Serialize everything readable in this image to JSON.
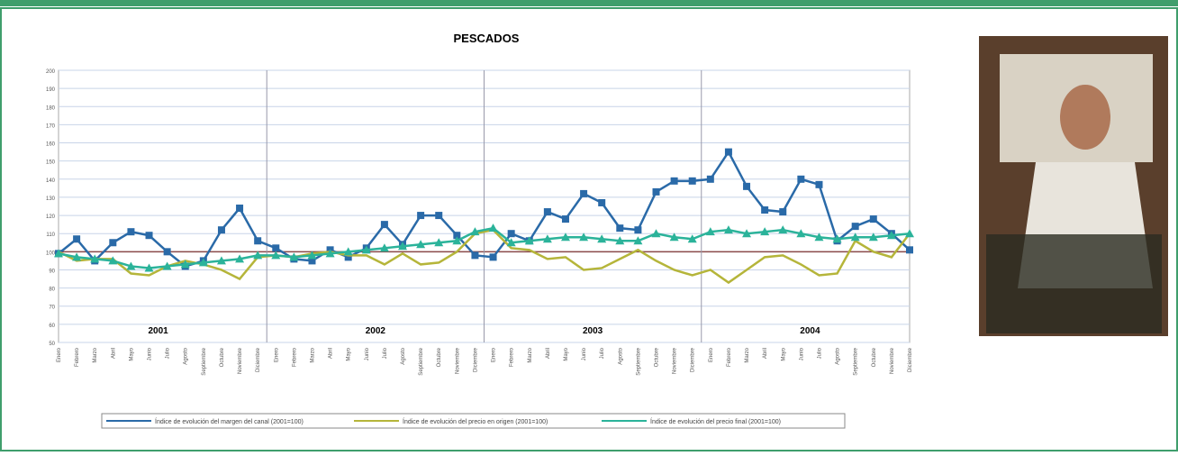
{
  "chart_data": {
    "type": "line",
    "title": "PESCADOS",
    "categories": [
      "Enero",
      "Febrero",
      "Marzo",
      "Abril",
      "Mayo",
      "Junio",
      "Julio",
      "Agosto",
      "Septiembre",
      "Octubre",
      "Noviembre",
      "Diciembre",
      "Enero",
      "Febrero",
      "Marzo",
      "Abril",
      "Mayo",
      "Junio",
      "Julio",
      "Agosto",
      "Septiembre",
      "Octubre",
      "Noviembre",
      "Diciembre",
      "Enero",
      "Febrero",
      "Marzo",
      "Abril",
      "Mayo",
      "Junio",
      "Julio",
      "Agosto",
      "Septiembre",
      "Octubre",
      "Noviembre",
      "Diciembre",
      "Enero",
      "Febrero",
      "Marzo",
      "Abril",
      "Mayo",
      "Junio",
      "Julio",
      "Agosto",
      "Septiembre",
      "Octubre",
      "Noviembre",
      "Diciembre"
    ],
    "years": [
      "2001",
      "2002",
      "2003",
      "2004"
    ],
    "series": [
      {
        "name": "Índice de evolución del margen del canal (2001=100)",
        "color": "#2a6aa8",
        "marker": "square",
        "values": [
          99,
          107,
          95,
          105,
          111,
          109,
          100,
          92,
          95,
          112,
          124,
          106,
          102,
          96,
          95,
          101,
          97,
          102,
          115,
          104,
          120,
          120,
          109,
          98,
          97,
          110,
          106,
          122,
          118,
          132,
          127,
          113,
          112,
          133,
          139,
          139,
          140,
          155,
          136,
          123,
          122,
          140,
          137,
          106,
          114,
          118,
          110,
          101
        ]
      },
      {
        "name": "Índice de evolución del precio en origen (2001=100)",
        "color": "#b5b53a",
        "marker": "none",
        "values": [
          100,
          95,
          96,
          96,
          88,
          87,
          92,
          95,
          93,
          90,
          85,
          97,
          98,
          97,
          99,
          100,
          98,
          98,
          93,
          99,
          93,
          94,
          100,
          110,
          112,
          102,
          101,
          96,
          97,
          90,
          91,
          96,
          101,
          95,
          90,
          87,
          90,
          83,
          90,
          97,
          98,
          93,
          87,
          88,
          106,
          100,
          97,
          110
        ]
      },
      {
        "name": "Índice de evolución del precio final (2001=100)",
        "color": "#2bb39a",
        "marker": "triangle",
        "values": [
          99,
          97,
          96,
          95,
          92,
          91,
          92,
          93,
          94,
          95,
          96,
          98,
          98,
          97,
          98,
          99,
          100,
          101,
          102,
          103,
          104,
          105,
          106,
          111,
          113,
          105,
          106,
          107,
          108,
          108,
          107,
          106,
          106,
          110,
          108,
          107,
          111,
          112,
          110,
          111,
          112,
          110,
          108,
          107,
          108,
          108,
          109,
          110
        ]
      }
    ],
    "ylim": [
      50,
      200
    ],
    "yticks": [
      50,
      60,
      70,
      80,
      90,
      100,
      110,
      120,
      130,
      140,
      150,
      160,
      170,
      180,
      190,
      200
    ],
    "grid": true
  }
}
